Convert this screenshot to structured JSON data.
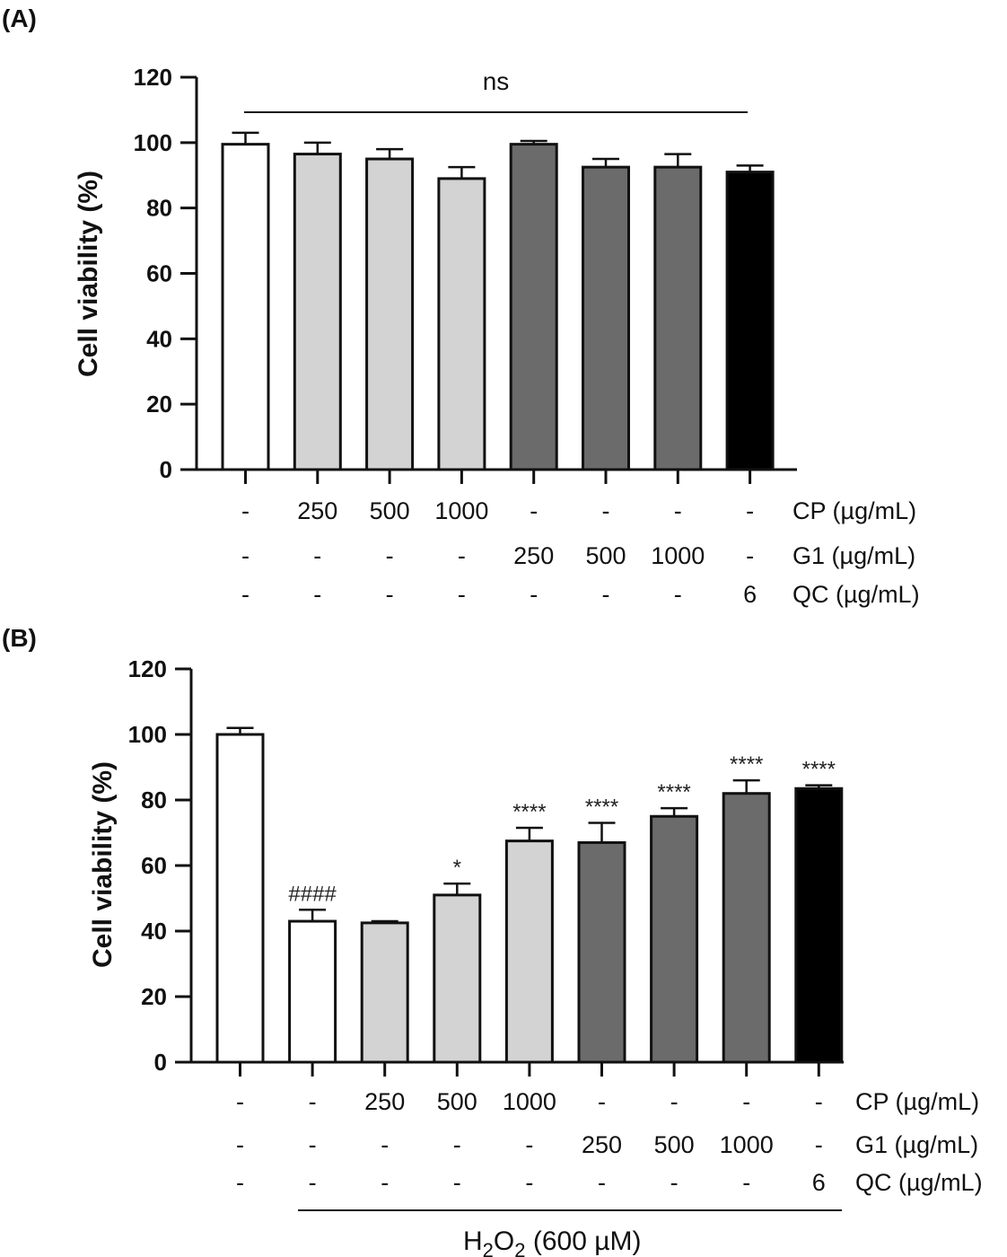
{
  "chart_data": [
    {
      "panel": "(A)",
      "type": "bar",
      "ylabel": "Cell viability (%)",
      "ylim": [
        0,
        120
      ],
      "yticks": [
        0,
        20,
        40,
        60,
        80,
        100,
        120
      ],
      "values": [
        99.5,
        96.5,
        95.0,
        89.0,
        99.5,
        92.5,
        92.5,
        91.0
      ],
      "errors": [
        3.5,
        3.5,
        3.0,
        3.5,
        1.0,
        2.5,
        4.0,
        2.0
      ],
      "colors": [
        "#ffffff",
        "#d3d3d3",
        "#d3d3d3",
        "#d3d3d3",
        "#6b6b6b",
        "#6b6b6b",
        "#6b6b6b",
        "#000000"
      ],
      "annotations": [
        "",
        "",
        "",
        "",
        "",
        "",
        "",
        ""
      ],
      "bracket": {
        "label": "ns"
      },
      "conditions": [
        {
          "label": "CP (µg/mL)",
          "values": [
            "-",
            "250",
            "500",
            "1000",
            "-",
            "-",
            "-",
            "-"
          ]
        },
        {
          "label": "G1 (µg/mL)",
          "values": [
            "-",
            "-",
            "-",
            "-",
            "250",
            "500",
            "1000",
            "-"
          ]
        },
        {
          "label": "QC (µg/mL)",
          "values": [
            "-",
            "-",
            "-",
            "-",
            "-",
            "-",
            "-",
            "6"
          ]
        }
      ],
      "footer": null
    },
    {
      "panel": "(B)",
      "type": "bar",
      "ylabel": "Cell viability (%)",
      "ylim": [
        0,
        120
      ],
      "yticks": [
        0,
        20,
        40,
        60,
        80,
        100,
        120
      ],
      "values": [
        100.0,
        43.0,
        42.5,
        51.0,
        67.5,
        67.0,
        75.0,
        82.0,
        83.5
      ],
      "errors": [
        2.0,
        3.5,
        0.5,
        3.5,
        4.0,
        6.0,
        2.5,
        4.0,
        1.0
      ],
      "colors": [
        "#ffffff",
        "#ffffff",
        "#d3d3d3",
        "#d3d3d3",
        "#d3d3d3",
        "#6b6b6b",
        "#6b6b6b",
        "#6b6b6b",
        "#000000"
      ],
      "annotations": [
        "",
        "####",
        "",
        "*",
        "****",
        "****",
        "****",
        "****",
        "****"
      ],
      "bracket": null,
      "conditions": [
        {
          "label": "CP (µg/mL)",
          "values": [
            "-",
            "-",
            "250",
            "500",
            "1000",
            "-",
            "-",
            "-",
            "-"
          ]
        },
        {
          "label": "G1 (µg/mL)",
          "values": [
            "-",
            "-",
            "-",
            "-",
            "-",
            "250",
            "500",
            "1000",
            "-"
          ]
        },
        {
          "label": "QC (µg/mL)",
          "values": [
            "-",
            "-",
            "-",
            "-",
            "-",
            "-",
            "-",
            "-",
            "6"
          ]
        }
      ],
      "footer": {
        "main": "H",
        "sub1": "2",
        "mid": "O",
        "sub2": "2",
        "rest": " (600 µM)"
      }
    }
  ]
}
